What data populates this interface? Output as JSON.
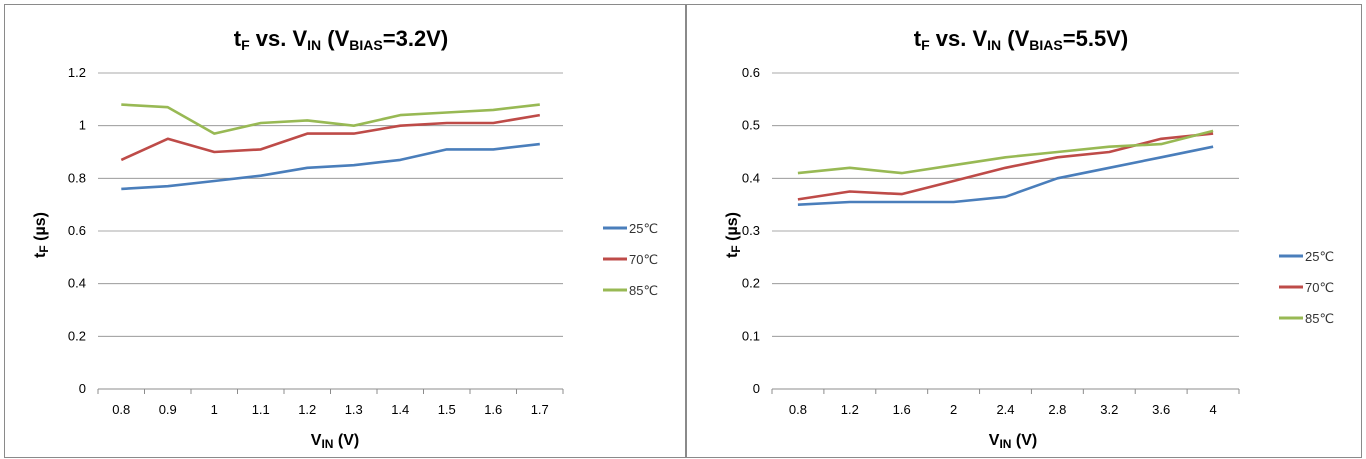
{
  "charts": [
    {
      "title": {
        "main": "t",
        "main_sub": "F",
        "mid": " vs. V",
        "mid_sub": "IN",
        "open": " (V",
        "param_sub": "BIAS",
        "tail": "=3.2V)"
      },
      "xlabel": {
        "main": "V",
        "sub": "IN",
        "tail": " (V)"
      },
      "ylabel": {
        "main": "t",
        "sub": "F",
        "tail": " (µs)"
      }
    },
    {
      "title": {
        "main": "t",
        "main_sub": "F",
        "mid": " vs. V",
        "mid_sub": "IN",
        "open": " (V",
        "param_sub": "BIAS",
        "tail": "=5.5V)"
      },
      "xlabel": {
        "main": "V",
        "sub": "IN",
        "tail": " (V)"
      },
      "ylabel": {
        "main": "t",
        "sub": "F",
        "tail": " (µs)"
      }
    }
  ],
  "chart_data": [
    {
      "type": "line",
      "categories": [
        "0.8",
        "0.9",
        "1",
        "1.1",
        "1.2",
        "1.3",
        "1.4",
        "1.5",
        "1.6",
        "1.7"
      ],
      "ylim": [
        0,
        1.2
      ],
      "yticks": [
        "0",
        "0.2",
        "0.4",
        "0.6",
        "0.8",
        "1",
        "1.2"
      ],
      "grid": true,
      "legend": "right",
      "series": [
        {
          "name": "25℃",
          "color": "#4a7ebb",
          "values": [
            0.76,
            0.77,
            0.79,
            0.81,
            0.84,
            0.85,
            0.87,
            0.91,
            0.91,
            0.93
          ]
        },
        {
          "name": "70℃",
          "color": "#be4b48",
          "values": [
            0.87,
            0.95,
            0.9,
            0.91,
            0.97,
            0.97,
            1.0,
            1.01,
            1.01,
            1.04
          ]
        },
        {
          "name": "85℃",
          "color": "#98b954",
          "values": [
            1.08,
            1.07,
            0.97,
            1.01,
            1.02,
            1.0,
            1.04,
            1.05,
            1.06,
            1.08
          ]
        }
      ]
    },
    {
      "type": "line",
      "categories": [
        "0.8",
        "1.2",
        "1.6",
        "2",
        "2.4",
        "2.8",
        "3.2",
        "3.6",
        "4"
      ],
      "ylim": [
        0,
        0.6
      ],
      "yticks": [
        "0",
        "0.1",
        "0.2",
        "0.3",
        "0.4",
        "0.5",
        "0.6"
      ],
      "grid": true,
      "legend": "right",
      "series": [
        {
          "name": "25℃",
          "color": "#4a7ebb",
          "values": [
            0.35,
            0.355,
            0.355,
            0.355,
            0.365,
            0.4,
            0.42,
            0.44,
            0.46
          ]
        },
        {
          "name": "70℃",
          "color": "#be4b48",
          "values": [
            0.36,
            0.375,
            0.37,
            0.395,
            0.42,
            0.44,
            0.45,
            0.475,
            0.485
          ]
        },
        {
          "name": "85℃",
          "color": "#98b954",
          "values": [
            0.41,
            0.42,
            0.41,
            0.425,
            0.44,
            0.45,
            0.46,
            0.465,
            0.49
          ]
        }
      ]
    }
  ]
}
